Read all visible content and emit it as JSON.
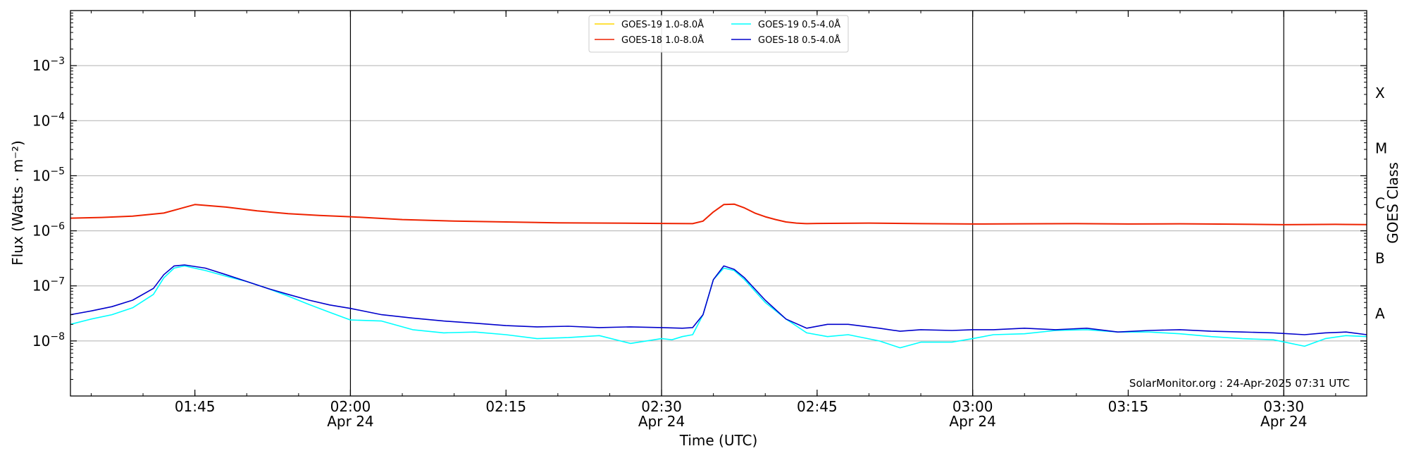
{
  "chart_data": {
    "type": "line",
    "xlabel": "Time (UTC)",
    "ylabel": "Flux (Watts · m⁻²)",
    "y2label": "GOES Class",
    "yscale": "log",
    "xlim": [
      "01:33",
      "03:38"
    ],
    "ylim": [
      1e-09,
      0.01
    ],
    "x_ticks": [
      {
        "time": "01:45",
        "label": "01:45",
        "date": ""
      },
      {
        "time": "02:00",
        "label": "02:00",
        "date": "Apr 24"
      },
      {
        "time": "02:15",
        "label": "02:15",
        "date": ""
      },
      {
        "time": "02:30",
        "label": "02:30",
        "date": "Apr 24"
      },
      {
        "time": "02:45",
        "label": "02:45",
        "date": ""
      },
      {
        "time": "03:00",
        "label": "03:00",
        "date": "Apr 24"
      },
      {
        "time": "03:15",
        "label": "03:15",
        "date": ""
      },
      {
        "time": "03:30",
        "label": "03:30",
        "date": "Apr 24"
      }
    ],
    "y_ticks": [
      {
        "value": 0.001,
        "base": "10",
        "exp": "−3"
      },
      {
        "value": 0.0001,
        "base": "10",
        "exp": "−4"
      },
      {
        "value": 1e-05,
        "base": "10",
        "exp": "−5"
      },
      {
        "value": 1e-06,
        "base": "10",
        "exp": "−6"
      },
      {
        "value": 1e-07,
        "base": "10",
        "exp": "−7"
      },
      {
        "value": 1e-08,
        "base": "10",
        "exp": "−8"
      }
    ],
    "class_labels": [
      {
        "label": "X",
        "value": 0.000316
      },
      {
        "label": "M",
        "value": 3.16e-05
      },
      {
        "label": "C",
        "value": 3.16e-06
      },
      {
        "label": "B",
        "value": 3.16e-07
      },
      {
        "label": "A",
        "value": 3.16e-08
      }
    ],
    "grid": "horizontal at decades",
    "day_lines": [
      "02:00",
      "02:30",
      "03:00",
      "03:30"
    ],
    "legend_placement": "top-center",
    "annotation": "SolarMonitor.org : 24-Apr-2025 07:31 UTC",
    "series": [
      {
        "name": "GOES-19 1.0-8.0Å",
        "color": "#ffd700",
        "x": [],
        "values": []
      },
      {
        "name": "GOES-18 1.0-8.0Å",
        "color": "#ee2200",
        "x": [
          "01:33",
          "01:36",
          "01:39",
          "01:42",
          "01:45",
          "01:48",
          "01:51",
          "01:54",
          "01:57",
          "02:00",
          "02:05",
          "02:10",
          "02:15",
          "02:20",
          "02:25",
          "02:30",
          "02:33",
          "02:34",
          "02:35",
          "02:36",
          "02:37",
          "02:38",
          "02:39",
          "02:40",
          "02:41",
          "02:42",
          "02:43",
          "02:44",
          "02:45",
          "02:50",
          "02:55",
          "03:00",
          "03:05",
          "03:10",
          "03:15",
          "03:20",
          "03:25",
          "03:30",
          "03:35",
          "03:38"
        ],
        "values": [
          1.7e-06,
          1.75e-06,
          1.85e-06,
          2.1e-06,
          3e-06,
          2.7e-06,
          2.3e-06,
          2.05e-06,
          1.9e-06,
          1.8e-06,
          1.6e-06,
          1.5e-06,
          1.45e-06,
          1.4e-06,
          1.38e-06,
          1.36e-06,
          1.35e-06,
          1.5e-06,
          2.2e-06,
          3e-06,
          3.05e-06,
          2.6e-06,
          2.1e-06,
          1.8e-06,
          1.6e-06,
          1.45e-06,
          1.38e-06,
          1.35e-06,
          1.36e-06,
          1.38e-06,
          1.35e-06,
          1.33e-06,
          1.34e-06,
          1.35e-06,
          1.33e-06,
          1.34e-06,
          1.32e-06,
          1.29e-06,
          1.31e-06,
          1.3e-06
        ]
      },
      {
        "name": "GOES-19 0.5-4.0Å",
        "color": "#00ffff",
        "x": [
          "01:33",
          "01:35",
          "01:37",
          "01:39",
          "01:41",
          "01:42",
          "01:43",
          "01:44",
          "01:46",
          "01:48",
          "01:50",
          "01:52",
          "01:54",
          "01:56",
          "01:58",
          "02:00",
          "02:03",
          "02:06",
          "02:09",
          "02:12",
          "02:15",
          "02:18",
          "02:21",
          "02:24",
          "02:27",
          "02:30",
          "02:31",
          "02:32",
          "02:33",
          "02:34",
          "02:35",
          "02:36",
          "02:37",
          "02:38",
          "02:40",
          "02:42",
          "02:44",
          "02:46",
          "02:48",
          "02:51",
          "02:53",
          "02:55",
          "02:58",
          "03:00",
          "03:02",
          "03:05",
          "03:08",
          "03:11",
          "03:14",
          "03:17",
          "03:20",
          "03:23",
          "03:26",
          "03:29",
          "03:32",
          "03:34",
          "03:36",
          "03:38"
        ],
        "values": [
          2e-08,
          2.5e-08,
          3e-08,
          4e-08,
          7e-08,
          1.4e-07,
          2.1e-07,
          2.3e-07,
          1.9e-07,
          1.5e-07,
          1.2e-07,
          9e-08,
          6.5e-08,
          4.6e-08,
          3.3e-08,
          2.4e-08,
          2.3e-08,
          1.6e-08,
          1.4e-08,
          1.45e-08,
          1.3e-08,
          1.1e-08,
          1.15e-08,
          1.25e-08,
          9e-09,
          1.1e-08,
          1.05e-08,
          1.2e-08,
          1.3e-08,
          3e-08,
          1.3e-07,
          2.1e-07,
          1.9e-07,
          1.3e-07,
          5e-08,
          2.5e-08,
          1.4e-08,
          1.2e-08,
          1.3e-08,
          1e-08,
          7.5e-09,
          9.5e-09,
          9.5e-09,
          1.1e-08,
          1.3e-08,
          1.35e-08,
          1.55e-08,
          1.6e-08,
          1.45e-08,
          1.45e-08,
          1.35e-08,
          1.2e-08,
          1.1e-08,
          1.05e-08,
          8e-09,
          1.1e-08,
          1.25e-08,
          1.2e-08
        ]
      },
      {
        "name": "GOES-18 0.5-4.0Å",
        "color": "#0000cc",
        "x": [
          "01:33",
          "01:35",
          "01:37",
          "01:39",
          "01:41",
          "01:42",
          "01:43",
          "01:44",
          "01:46",
          "01:48",
          "01:50",
          "01:52",
          "01:54",
          "01:56",
          "01:58",
          "02:00",
          "02:03",
          "02:06",
          "02:09",
          "02:12",
          "02:15",
          "02:18",
          "02:21",
          "02:24",
          "02:27",
          "02:30",
          "02:32",
          "02:33",
          "02:34",
          "02:35",
          "02:36",
          "02:37",
          "02:38",
          "02:40",
          "02:42",
          "02:44",
          "02:46",
          "02:48",
          "02:51",
          "02:53",
          "02:55",
          "02:58",
          "03:00",
          "03:02",
          "03:05",
          "03:08",
          "03:11",
          "03:14",
          "03:17",
          "03:20",
          "03:23",
          "03:26",
          "03:29",
          "03:32",
          "03:34",
          "03:36",
          "03:38"
        ],
        "values": [
          3e-08,
          3.5e-08,
          4.2e-08,
          5.5e-08,
          9e-08,
          1.6e-07,
          2.3e-07,
          2.4e-07,
          2.1e-07,
          1.6e-07,
          1.2e-07,
          9e-08,
          7e-08,
          5.5e-08,
          4.5e-08,
          3.9e-08,
          3e-08,
          2.6e-08,
          2.3e-08,
          2.1e-08,
          1.9e-08,
          1.8e-08,
          1.85e-08,
          1.75e-08,
          1.8e-08,
          1.75e-08,
          1.7e-08,
          1.75e-08,
          3e-08,
          1.3e-07,
          2.3e-07,
          2e-07,
          1.4e-07,
          5.5e-08,
          2.5e-08,
          1.7e-08,
          2e-08,
          2e-08,
          1.7e-08,
          1.5e-08,
          1.6e-08,
          1.55e-08,
          1.6e-08,
          1.6e-08,
          1.7e-08,
          1.6e-08,
          1.7e-08,
          1.45e-08,
          1.55e-08,
          1.6e-08,
          1.5e-08,
          1.45e-08,
          1.4e-08,
          1.3e-08,
          1.4e-08,
          1.45e-08,
          1.3e-08
        ]
      }
    ]
  }
}
